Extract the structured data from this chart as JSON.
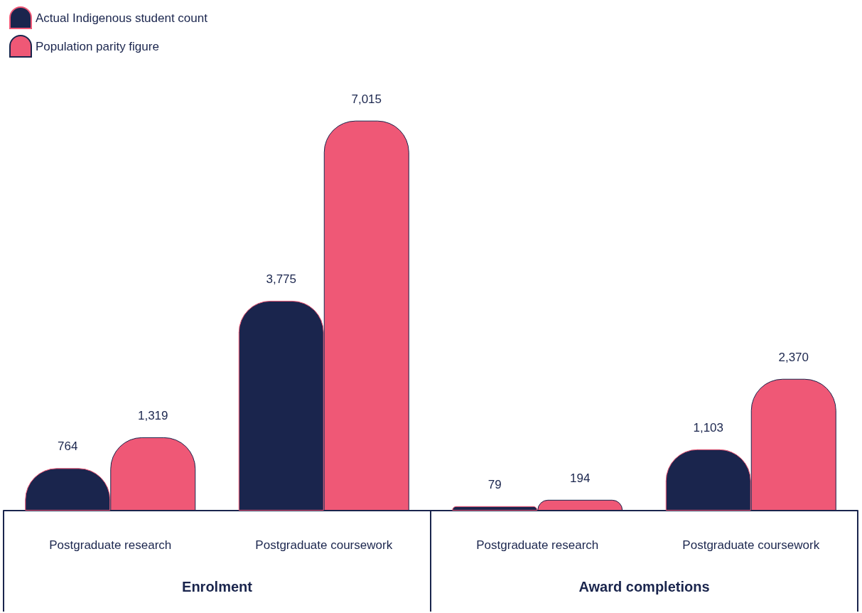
{
  "chart_data": {
    "type": "bar",
    "categories": [
      "Postgraduate research",
      "Postgraduate coursework",
      "Postgraduate research",
      "Postgraduate coursework"
    ],
    "series": [
      {
        "name": "Actual Indigenous student count",
        "color": "#1a254d",
        "values": [
          764,
          3775,
          79,
          1103
        ],
        "value_labels": [
          "764",
          "3,775",
          "79",
          "1,103"
        ]
      },
      {
        "name": "Population parity figure",
        "color": "#ef5876",
        "values": [
          1319,
          7015,
          194,
          2370
        ],
        "value_labels": [
          "1,319",
          "7,015",
          "194",
          "2,370"
        ]
      }
    ],
    "legend": "top left",
    "annotations": [
      "Enrolment",
      "Award completions"
    ]
  }
}
